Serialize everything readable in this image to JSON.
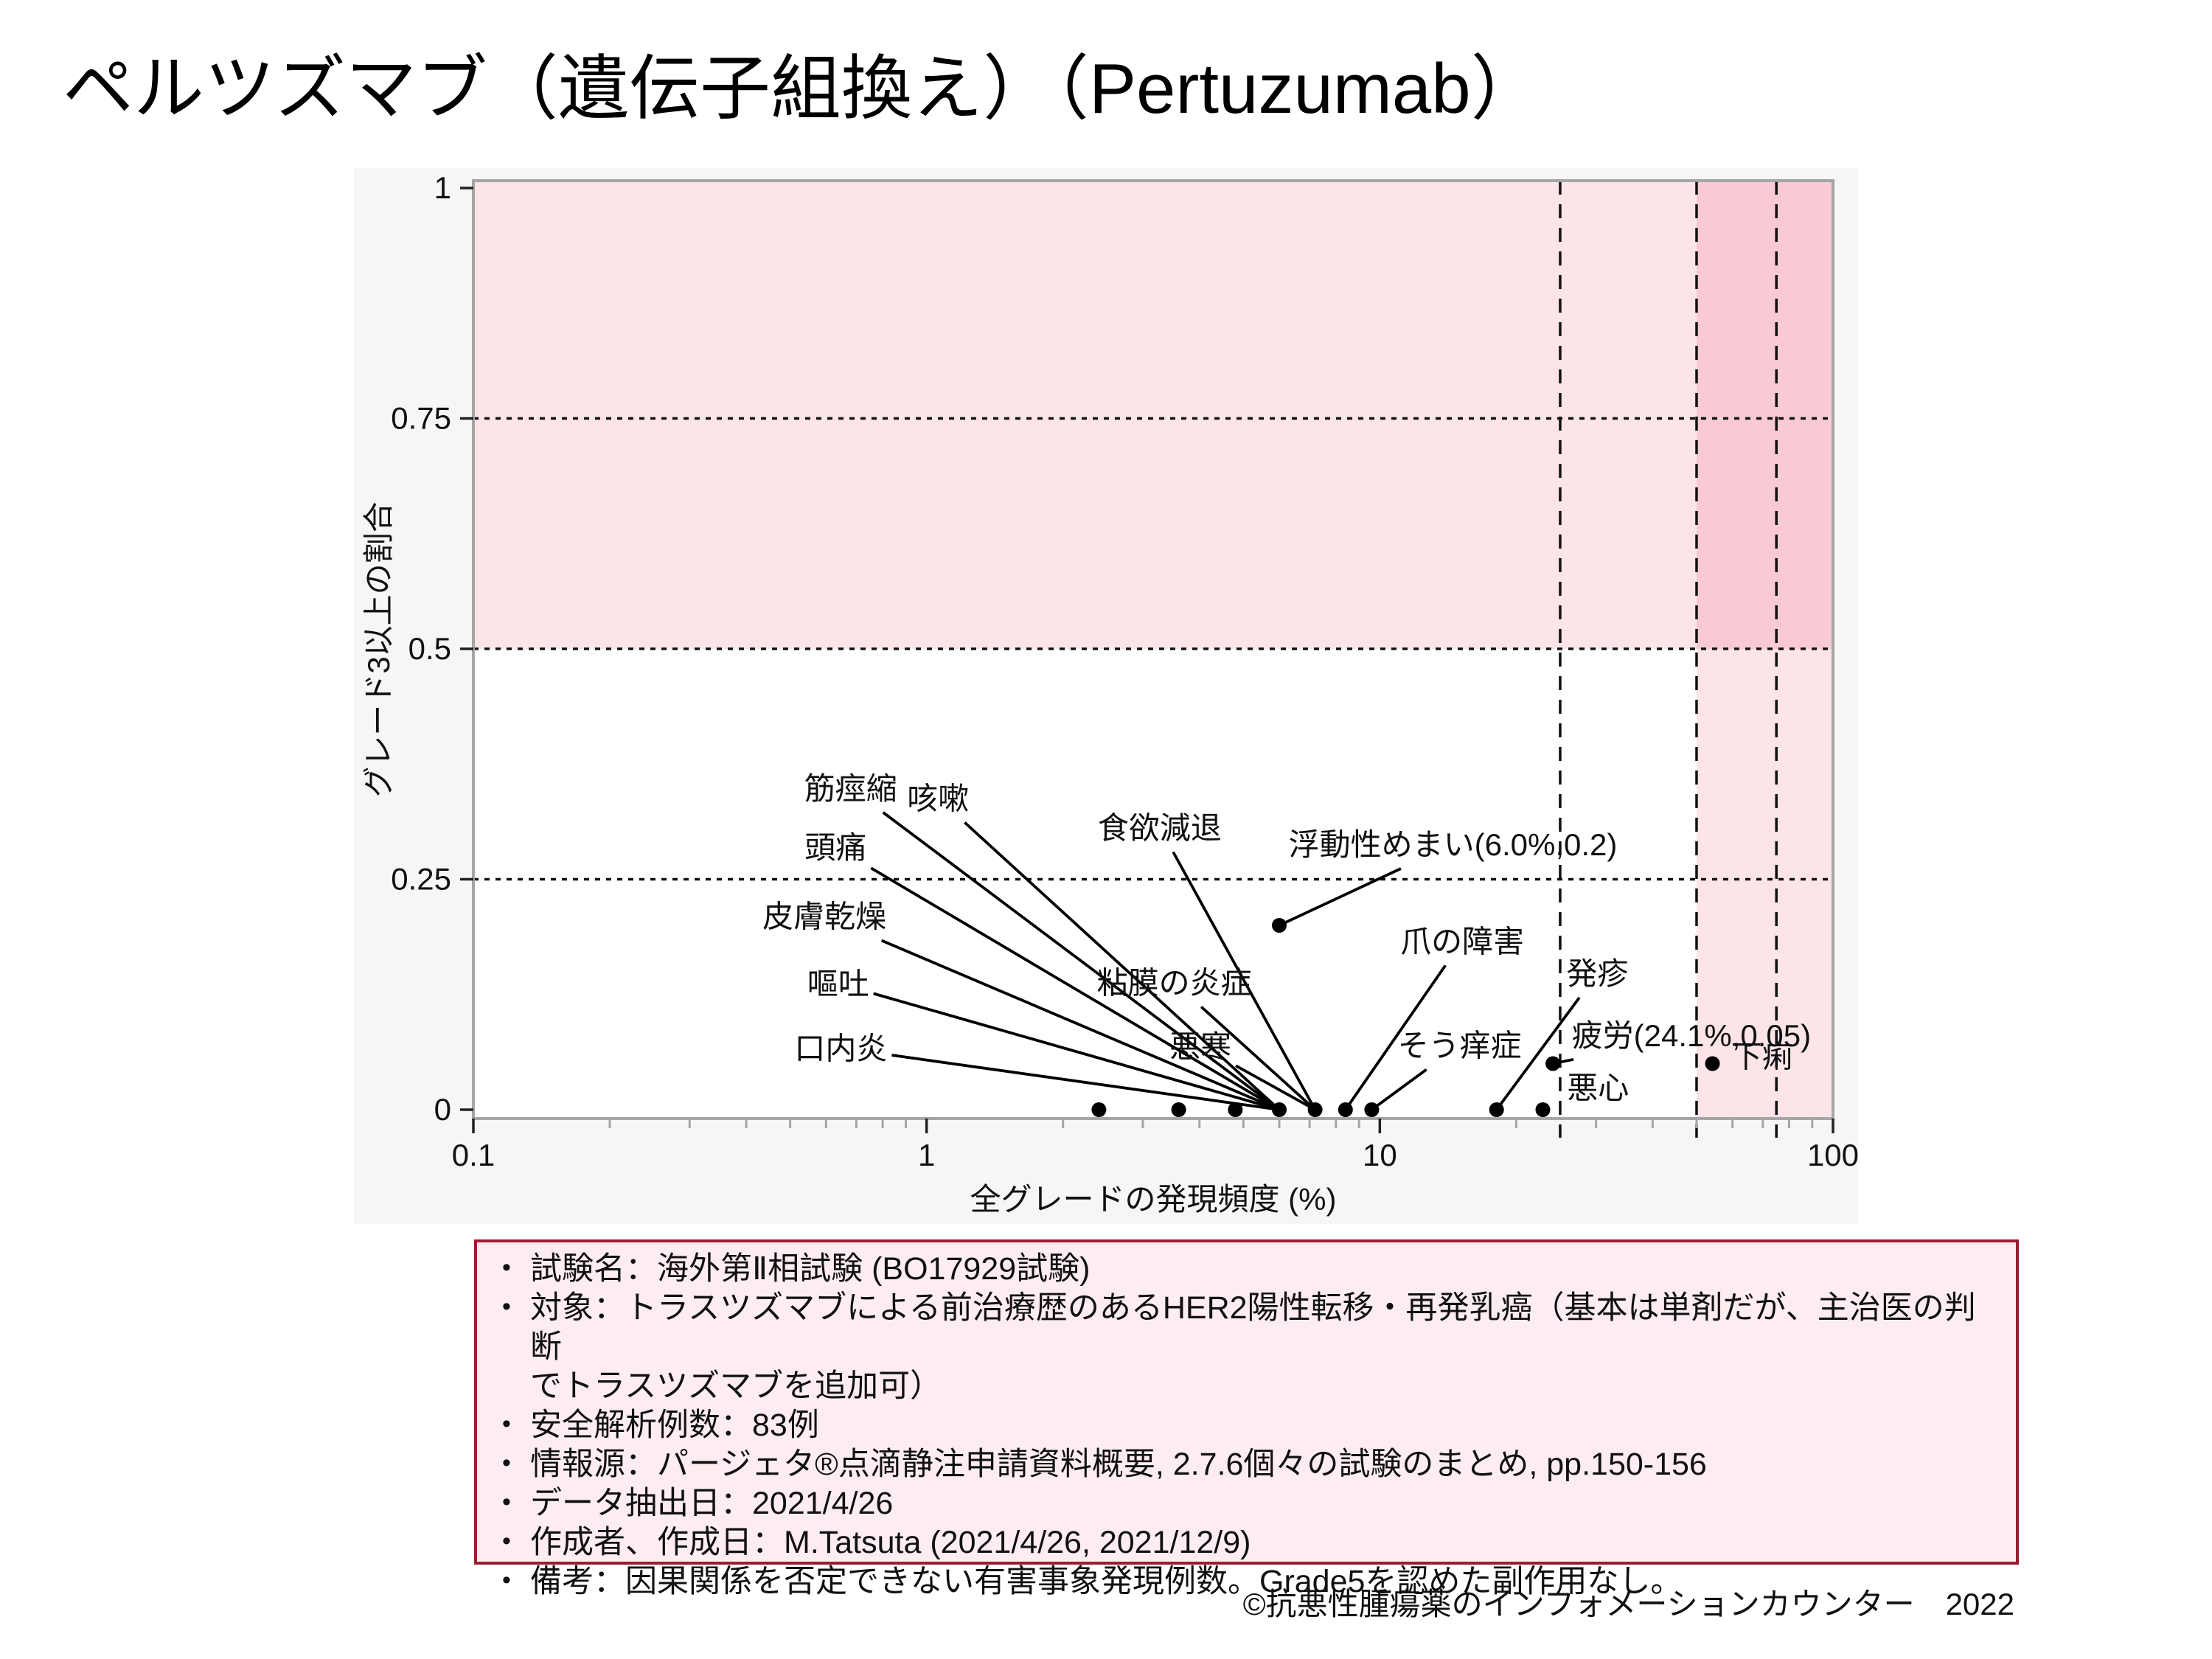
{
  "page_title": "ペルツズマブ（遺伝子組換え）（Pertuzumab）",
  "chart_data": {
    "type": "scatter",
    "xlabel": "全グレードの発現頻度 (%)",
    "ylabel": "グレード3以上の割合",
    "x_scale": "log",
    "xlim": [
      0.1,
      100
    ],
    "ylim": [
      0,
      1
    ],
    "x_major_ticks": [
      0.1,
      1,
      10,
      100
    ],
    "x_minor_ticks": [
      0.2,
      0.3,
      0.4,
      0.5,
      0.6,
      0.7,
      0.8,
      0.9,
      2,
      3,
      4,
      5,
      6,
      7,
      8,
      9,
      20,
      30,
      40,
      50,
      60,
      70,
      80,
      90
    ],
    "y_major_ticks": [
      0,
      0.25,
      0.5,
      0.75,
      1
    ],
    "grid_h_dotted": [
      0.25,
      0.5,
      0.75
    ],
    "grid_v_dashed": [
      25,
      50,
      75
    ],
    "shaded_band_y": {
      "from": 0.5,
      "to": 1.0
    },
    "shaded_band_x": {
      "from": 50,
      "to": 100
    },
    "points": [
      {
        "x": 2.4,
        "y": 0
      },
      {
        "x": 3.6,
        "y": 0
      },
      {
        "x": 4.8,
        "y": 0
      },
      {
        "x": 6.0,
        "y": 0
      },
      {
        "x": 7.2,
        "y": 0
      },
      {
        "x": 8.4,
        "y": 0
      },
      {
        "x": 9.6,
        "y": 0
      },
      {
        "x": 18.1,
        "y": 0
      },
      {
        "x": 22.9,
        "y": 0
      },
      {
        "x": 6.0,
        "y": 0.2
      },
      {
        "x": 24.1,
        "y": 0.05
      },
      {
        "x": 54.2,
        "y": 0.05
      }
    ],
    "labels": [
      {
        "text": "筋痙縮",
        "x": 0.68,
        "y": 0.349,
        "tx": 6.0,
        "ty": 0,
        "line": true
      },
      {
        "text": "咳嗽",
        "x": 1.06,
        "y": 0.338,
        "tx": 6.0,
        "ty": 0,
        "line": true
      },
      {
        "text": "頭痛",
        "x": 0.63,
        "y": 0.285,
        "tx": 6.0,
        "ty": 0,
        "line": true
      },
      {
        "text": "皮膚乾燥",
        "x": 0.595,
        "y": 0.21,
        "tx": 6.0,
        "ty": 0,
        "line": true
      },
      {
        "text": "嘔吐",
        "x": 0.638,
        "y": 0.137,
        "tx": 6.0,
        "ty": 0,
        "line": true
      },
      {
        "text": "口内炎",
        "x": 0.647,
        "y": 0.067,
        "tx": 6.0,
        "ty": 0,
        "line": true
      },
      {
        "text": "食欲減退",
        "x": 3.27,
        "y": 0.306,
        "tx": 7.2,
        "ty": 0,
        "line": true
      },
      {
        "text": "粘膜の炎症",
        "x": 3.52,
        "y": 0.138,
        "tx": 7.2,
        "ty": 0,
        "line": true
      },
      {
        "text": "悪寒",
        "x": 4.02,
        "y": 0.069,
        "tx": 7.2,
        "ty": 0,
        "line": true
      },
      {
        "text": "浮動性めまい(6.0%,0.2)",
        "x": 14.5,
        "y": 0.288,
        "tx": 6.0,
        "ty": 0.2,
        "line": true
      },
      {
        "text": "爪の障害",
        "x": 15.2,
        "y": 0.183,
        "tx": 8.4,
        "ty": 0,
        "line": true
      },
      {
        "text": "そう痒症",
        "x": 15.0,
        "y": 0.07,
        "tx": 9.6,
        "ty": 0,
        "line": true
      },
      {
        "text": "発疹",
        "x": 30.2,
        "y": 0.148,
        "tx": 18.1,
        "ty": 0,
        "line": true
      },
      {
        "text": "疲労(24.1%,0.05)",
        "x": 48.7,
        "y": 0.081,
        "tx": 24.1,
        "ty": 0.05,
        "line": true
      },
      {
        "text": "悪心",
        "x": 30.3,
        "y": 0.024,
        "tx": 22.9,
        "ty": 0,
        "line": false
      },
      {
        "text": "下痢",
        "x": 69.7,
        "y": 0.058,
        "tx": 54.2,
        "ty": 0.05,
        "line": false
      }
    ]
  },
  "info_box": {
    "bullets": [
      "試験名：海外第Ⅱ相試験 (BO17929試験)",
      "対象：トラスツズマブによる前治療歴のあるHER2陽性転移・再発乳癌（基本は単剤だが、主治医の判断\nでトラスツズマブを追加可）",
      "安全解析例数：83例",
      "情報源：パージェタ®点滴静注申請資料概要, 2.7.6個々の試験のまとめ, pp.150-156",
      "データ抽出日：2021/4/26",
      "作成者、作成日：M.Tatsuta (2021/4/26, 2021/12/9)",
      "備考：因果関係を否定できない有害事象発現例数。Grade5を認めた副作用なし。"
    ]
  },
  "footer": "©抗悪性腫瘍薬のインフォメーションカウンター　2022",
  "colors": {
    "band_pink": "#fde4e8",
    "band_pink_dark": "#f9cad4",
    "figure_bg": "#f6f6f6",
    "axis_gray": "#a6a6a6",
    "line_black": "#000000",
    "info_border": "#9c1b33",
    "info_bg": "#fdedf0"
  }
}
